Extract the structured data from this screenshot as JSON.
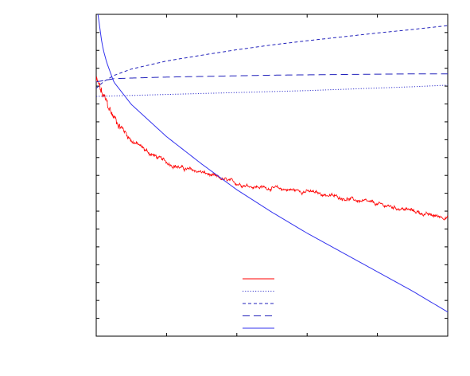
{
  "chart_data": {
    "type": "line",
    "title": "",
    "xlabel": "",
    "ylabel": "",
    "x_range": [
      0,
      1
    ],
    "y_range": [
      0,
      1
    ],
    "grid": false,
    "legend_placement": "bottom-center",
    "x_ticks": [
      0,
      0.2,
      0.4,
      0.6,
      0.8,
      1.0
    ],
    "y_ticks": [
      0,
      0.0555,
      0.111,
      0.1665,
      0.222,
      0.2775,
      0.333,
      0.3885,
      0.444,
      0.4995,
      0.555,
      0.6105,
      0.666,
      0.7215,
      0.777,
      0.8325,
      0.888,
      0.9435,
      1.0
    ],
    "series": [
      {
        "style": "solid",
        "color": "#ff0000",
        "noisy": true,
        "x": [
          0,
          0.005,
          0.02,
          0.05,
          0.1,
          0.15,
          0.2,
          0.25,
          0.3,
          0.35,
          0.4,
          0.45,
          0.5,
          0.55,
          0.6,
          0.65,
          0.7,
          0.75,
          0.8,
          0.85,
          0.9,
          0.95,
          1.0
        ],
        "y": [
          0.79,
          0.78,
          0.74,
          0.68,
          0.61,
          0.57,
          0.54,
          0.52,
          0.51,
          0.49,
          0.475,
          0.465,
          0.46,
          0.455,
          0.45,
          0.44,
          0.43,
          0.42,
          0.41,
          0.4,
          0.39,
          0.375,
          0.37
        ]
      },
      {
        "style": "dotted",
        "color": "#3333cc",
        "x": [
          0,
          0.1,
          0.2,
          0.3,
          0.4,
          0.5,
          0.6,
          0.7,
          0.8,
          0.9,
          1.0
        ],
        "y": [
          0.745,
          0.748,
          0.751,
          0.754,
          0.757,
          0.76,
          0.763,
          0.767,
          0.771,
          0.775,
          0.78
        ]
      },
      {
        "style": "short-dashed",
        "color": "#2222bb",
        "x": [
          0,
          0.02,
          0.05,
          0.1,
          0.2,
          0.3,
          0.4,
          0.5,
          0.6,
          0.7,
          0.8,
          0.9,
          1.0
        ],
        "y": [
          0.77,
          0.79,
          0.81,
          0.83,
          0.855,
          0.873,
          0.89,
          0.905,
          0.918,
          0.93,
          0.942,
          0.953,
          0.965
        ]
      },
      {
        "style": "long-dashed",
        "color": "#2222bb",
        "x": [
          0,
          0.05,
          0.1,
          0.2,
          0.3,
          0.4,
          0.5,
          0.6,
          0.7,
          0.8,
          0.9,
          1.0
        ],
        "y": [
          0.79,
          0.8,
          0.802,
          0.805,
          0.807,
          0.809,
          0.811,
          0.812,
          0.813,
          0.814,
          0.815,
          0.815
        ]
      },
      {
        "style": "solid",
        "color": "#3333ee",
        "x": [
          0.005,
          0.01,
          0.015,
          0.02,
          0.03,
          0.05,
          0.1,
          0.2,
          0.3,
          0.4,
          0.5,
          0.6,
          0.7,
          0.8,
          0.9,
          1.0
        ],
        "y": [
          1.0,
          0.96,
          0.92,
          0.89,
          0.85,
          0.79,
          0.72,
          0.62,
          0.535,
          0.455,
          0.385,
          0.32,
          0.26,
          0.2,
          0.14,
          0.075
        ]
      }
    ]
  }
}
